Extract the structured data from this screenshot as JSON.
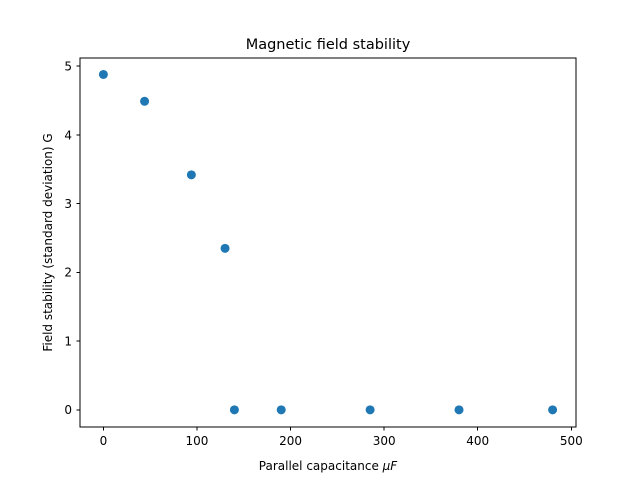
{
  "chart_data": {
    "type": "scatter",
    "title": "Magnetic field stability",
    "xlabel_prefix": "Parallel capacitance ",
    "xlabel_unit": "μF",
    "ylabel": "Field stability (standard deviation) G",
    "xlim": [
      -25,
      505
    ],
    "ylim": [
      -0.25,
      5.12
    ],
    "xticks": [
      0,
      100,
      200,
      300,
      400,
      500
    ],
    "xtick_labels": [
      "0",
      "100",
      "200",
      "300",
      "400",
      "500"
    ],
    "yticks": [
      0,
      1,
      2,
      3,
      4,
      5
    ],
    "ytick_labels": [
      "0",
      "1",
      "2",
      "3",
      "4",
      "5"
    ],
    "grid": false,
    "marker_color": "#1f77b4",
    "series": [
      {
        "x": [
          0,
          44,
          94,
          130,
          140,
          190,
          285,
          380,
          480
        ],
        "y": [
          4.88,
          4.49,
          3.42,
          2.35,
          0.0,
          0.0,
          0.0,
          0.0,
          0.0
        ]
      }
    ]
  }
}
